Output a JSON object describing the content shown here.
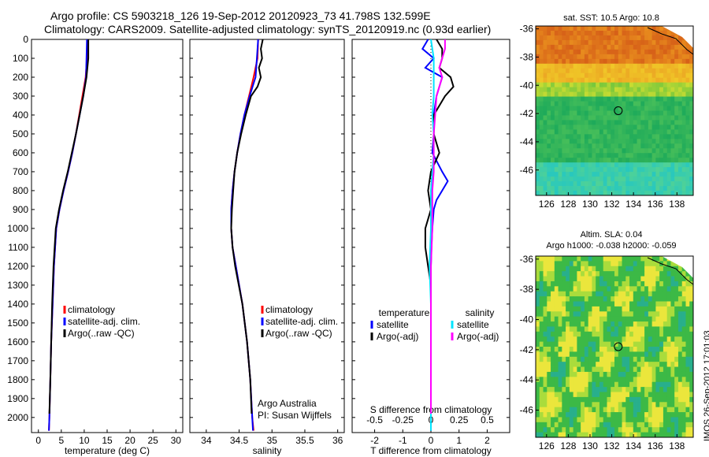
{
  "header": {
    "title_line1": "Argo profile: CS 5903218_126 19-Sep-2012 20120923_73 41.798S 132.599E",
    "title_line2": "Climatology: CARS2009. Satellite-adjusted climatology: synTS_20120919.nc (0.93d earlier)"
  },
  "stamp": "IMOS 26-Sep-2012 17:01:03",
  "colors": {
    "climatology": "#ff0000",
    "satellite": "#0000ff",
    "argo": "#000000",
    "sat_salinity": "#00e5ff",
    "argo_salinity": "#ff00ff"
  },
  "chart_data": [
    {
      "type": "line",
      "id": "temperature",
      "xlabel": "temperature (deg C)",
      "xticks": [
        "0",
        "5",
        "10",
        "15",
        "20",
        "25",
        "30"
      ],
      "xlim": [
        -1.5,
        31.5
      ],
      "ylim": [
        0,
        2080
      ],
      "yticks": [
        "0",
        "100",
        "200",
        "300",
        "400",
        "500",
        "600",
        "700",
        "800",
        "900",
        "1000",
        "1100",
        "1200",
        "1300",
        "1400",
        "1500",
        "1600",
        "1700",
        "1800",
        "1900",
        "2000"
      ],
      "legend": [
        "climatology",
        "satellite-adj. clim.",
        "Argo(..raw -QC)"
      ],
      "series": [
        {
          "name": "climatology",
          "color": "#ff0000",
          "depth": [
            0,
            100,
            200,
            300,
            400,
            500,
            600,
            700,
            800,
            900,
            1000,
            1200,
            1400,
            1600,
            1800,
            2000,
            2070
          ],
          "values": [
            10.7,
            10.6,
            10.3,
            9.6,
            8.9,
            8.2,
            7.4,
            6.5,
            5.5,
            4.6,
            3.9,
            3.4,
            3.1,
            2.8,
            2.6,
            2.4,
            2.3
          ]
        },
        {
          "name": "satellite-adj. clim.",
          "color": "#0000ff",
          "depth": [
            0,
            100,
            200,
            300,
            400,
            500,
            600,
            700,
            800,
            900,
            1000,
            1200,
            1400,
            1600,
            1800,
            2000,
            2070
          ],
          "values": [
            10.6,
            10.5,
            10.4,
            9.8,
            9.0,
            8.2,
            7.4,
            6.5,
            5.5,
            4.6,
            3.9,
            3.4,
            3.1,
            2.8,
            2.6,
            2.4,
            2.3
          ]
        },
        {
          "name": "Argo(..raw -QC)",
          "color": "#000000",
          "depth": [
            0,
            100,
            200,
            300,
            400,
            500,
            600,
            700,
            800,
            900,
            1000,
            1200,
            1400,
            1600,
            1800,
            1980
          ],
          "values": [
            10.9,
            10.9,
            10.5,
            9.8,
            9.0,
            8.2,
            7.3,
            6.4,
            5.4,
            4.5,
            3.8,
            3.3,
            3.0,
            2.8,
            2.6,
            2.4
          ]
        }
      ]
    },
    {
      "type": "line",
      "id": "salinity",
      "xlabel": "salinity",
      "xticks": [
        "34",
        "34.5",
        "35",
        "35.5",
        "36"
      ],
      "xlim": [
        33.75,
        36.1
      ],
      "legend": [
        "climatology",
        "satellite-adj. clim.",
        "Argo(..raw -QC)"
      ],
      "annotation": [
        "Argo Australia",
        "PI: Susan Wijffels"
      ],
      "series": [
        {
          "name": "climatology",
          "color": "#ff0000",
          "depth": [
            0,
            100,
            200,
            300,
            400,
            500,
            600,
            700,
            800,
            900,
            1000,
            1100,
            1200,
            1400,
            1600,
            1800,
            2000,
            2070
          ],
          "values": [
            34.79,
            34.78,
            34.72,
            34.65,
            34.58,
            34.52,
            34.47,
            34.43,
            34.4,
            34.38,
            34.38,
            34.4,
            34.45,
            34.55,
            34.62,
            34.67,
            34.7,
            34.72
          ]
        },
        {
          "name": "satellite-adj. clim.",
          "color": "#0000ff",
          "depth": [
            0,
            100,
            200,
            300,
            400,
            500,
            600,
            700,
            800,
            900,
            1000,
            1100,
            1200,
            1400,
            1600,
            1800,
            2000,
            2070
          ],
          "values": [
            34.79,
            34.77,
            34.75,
            34.66,
            34.58,
            34.52,
            34.47,
            34.43,
            34.4,
            34.38,
            34.38,
            34.4,
            34.45,
            34.55,
            34.62,
            34.67,
            34.7,
            34.71
          ]
        },
        {
          "name": "Argo(..raw -QC)",
          "color": "#000000",
          "depth": [
            0,
            50,
            100,
            150,
            200,
            250,
            300,
            400,
            500,
            600,
            700,
            800,
            900,
            1000,
            1100,
            1200,
            1400,
            1600,
            1800,
            1980
          ],
          "values": [
            34.86,
            34.83,
            34.85,
            34.8,
            34.83,
            34.78,
            34.68,
            34.6,
            34.53,
            34.47,
            34.43,
            34.41,
            34.39,
            34.38,
            34.4,
            34.44,
            34.55,
            34.62,
            34.67,
            34.69
          ]
        }
      ]
    },
    {
      "type": "line",
      "id": "difference",
      "xlabel": "T difference from climatology",
      "xlabel_top": "S difference from climatology",
      "xticks": [
        "-2",
        "-1",
        "0",
        "1",
        "2"
      ],
      "xticks_top": [
        "-0.5",
        "-0.25",
        "0",
        "0.25",
        "0.5"
      ],
      "xlim": [
        -2.8,
        2.8
      ],
      "legend_temperature_title": "temperature",
      "legend_salinity_title": "salinity",
      "legend": [
        "satellite",
        "Argo(-adj)",
        "satellite",
        "Argo(-adj)"
      ],
      "series": [
        {
          "name": "satellite",
          "color": "#0000ff",
          "depth": [
            0,
            50,
            100,
            150,
            200,
            250,
            300,
            400,
            500,
            600,
            700,
            750,
            800,
            850,
            900,
            1000,
            1100,
            1200,
            1300,
            1400,
            1600,
            1800,
            2000,
            2070
          ],
          "values": [
            -0.1,
            -0.3,
            0.1,
            -0.2,
            0.4,
            0.3,
            0.2,
            0.1,
            0.1,
            0.05,
            0.4,
            0.6,
            0.4,
            0.2,
            0.1,
            0.05,
            0.02,
            0.0,
            0.0,
            0.0,
            0.0,
            0.0,
            0.0,
            0.0
          ]
        },
        {
          "name": "Argo(-adj)",
          "color": "#000000",
          "depth": [
            0,
            50,
            100,
            150,
            200,
            250,
            300,
            400,
            500,
            600,
            700,
            800,
            900,
            1000,
            1100,
            1200,
            1300,
            1400,
            1600,
            1800,
            1980
          ],
          "values": [
            0.2,
            0.4,
            0.4,
            0.3,
            0.7,
            0.8,
            0.5,
            0.1,
            0.1,
            0.3,
            0.0,
            -0.1,
            0.0,
            -0.2,
            -0.2,
            -0.1,
            0.0,
            0.0,
            0.0,
            0.0,
            0.0
          ]
        },
        {
          "name": "satellite",
          "color": "#00e5ff",
          "depth": [
            0,
            100,
            200,
            300,
            400,
            500,
            600,
            700,
            800,
            1000,
            1200,
            1400,
            1600,
            1800,
            2000,
            2070
          ],
          "values": [
            0.0,
            0.1,
            0.1,
            0.1,
            0.05,
            0.1,
            0.1,
            0.05,
            0.0,
            0.0,
            -0.05,
            0.0,
            0.0,
            0.0,
            0.0,
            0.0
          ]
        },
        {
          "name": "Argo(-adj)",
          "color": "#ff00ff",
          "depth": [
            0,
            50,
            100,
            150,
            200,
            300,
            400,
            500,
            600,
            700,
            800,
            1000,
            1200,
            1400,
            1600,
            1800,
            1980
          ],
          "values": [
            0.5,
            0.5,
            0.4,
            0.3,
            0.4,
            0.2,
            0.15,
            0.1,
            0.1,
            0.1,
            0.05,
            0.05,
            0.0,
            0.0,
            0.0,
            0.0,
            0.0
          ]
        }
      ]
    },
    {
      "type": "heatmap",
      "id": "sst_map",
      "title": "sat. SST: 10.5  Argo: 10.8",
      "xticks": [
        "126",
        "128",
        "130",
        "132",
        "134",
        "136",
        "138"
      ],
      "yticks": [
        "-36",
        "-38",
        "-40",
        "-42",
        "-44",
        "-46"
      ],
      "xlim": [
        125,
        139.5
      ],
      "ylim": [
        -47.8,
        -35.8
      ],
      "argo_marker": {
        "lon": 132.6,
        "lat": -41.8
      }
    },
    {
      "type": "heatmap",
      "id": "sla_map",
      "title_line1": "Altim. SLA: 0.04",
      "title_line2": "Argo h1000: -0.038 h2000: -0.059",
      "xticks": [
        "126",
        "128",
        "130",
        "132",
        "134",
        "136",
        "138"
      ],
      "yticks": [
        "-36",
        "-38",
        "-40",
        "-42",
        "-44",
        "-46"
      ],
      "xlim": [
        125,
        139.5
      ],
      "ylim": [
        -47.8,
        -35.8
      ],
      "argo_marker": {
        "lon": 132.6,
        "lat": -41.8
      }
    }
  ]
}
